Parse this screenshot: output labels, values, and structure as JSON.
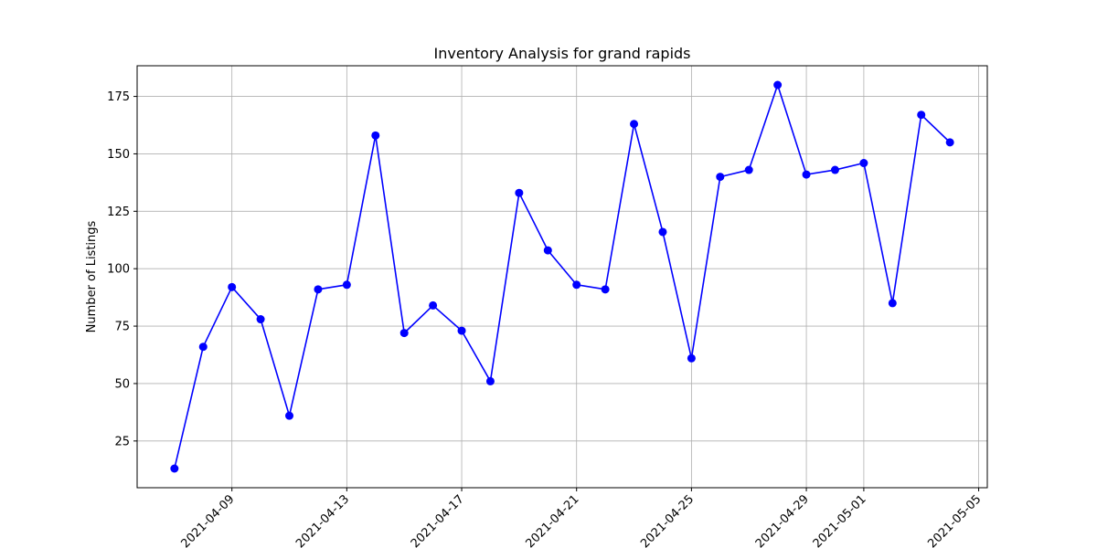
{
  "chart_data": {
    "type": "line",
    "title": "Inventory Analysis for grand rapids",
    "xlabel": "",
    "ylabel": "Number of Listings",
    "grid": true,
    "xlim": [
      "2021-04-05 16:48",
      "2021-05-05 07:12"
    ],
    "ylim": [
      4.65,
      188.35
    ],
    "x_ticks": [
      "2021-04-09",
      "2021-04-13",
      "2021-04-17",
      "2021-04-21",
      "2021-04-25",
      "2021-04-29",
      "2021-05-01",
      "2021-05-05"
    ],
    "y_ticks": [
      25,
      50,
      75,
      100,
      125,
      150,
      175
    ],
    "series": [
      {
        "color": "#0000ff",
        "marker": "circle",
        "x": [
          "2021-04-07",
          "2021-04-08",
          "2021-04-09",
          "2021-04-10",
          "2021-04-11",
          "2021-04-12",
          "2021-04-13",
          "2021-04-14",
          "2021-04-15",
          "2021-04-16",
          "2021-04-17",
          "2021-04-18",
          "2021-04-19",
          "2021-04-20",
          "2021-04-21",
          "2021-04-22",
          "2021-04-23",
          "2021-04-24",
          "2021-04-25",
          "2021-04-26",
          "2021-04-27",
          "2021-04-28",
          "2021-04-29",
          "2021-04-30",
          "2021-05-01",
          "2021-05-02",
          "2021-05-03",
          "2021-05-04"
        ],
        "values": [
          13,
          66,
          92,
          78,
          36,
          91,
          93,
          158,
          72,
          84,
          73,
          51,
          133,
          108,
          93,
          91,
          163,
          116,
          61,
          140,
          143,
          180,
          141,
          143,
          146,
          85,
          167,
          155
        ]
      }
    ]
  }
}
